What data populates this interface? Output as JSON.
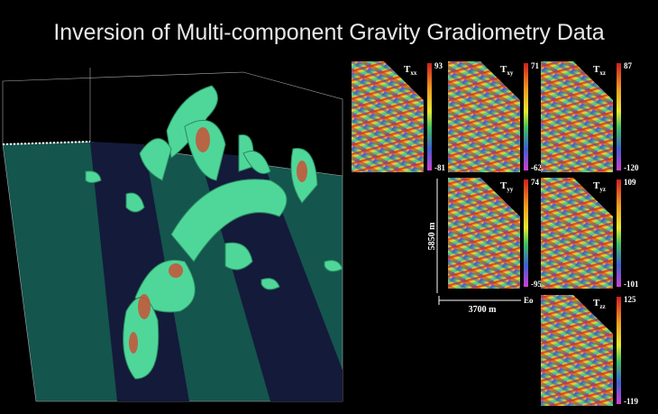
{
  "header": {
    "title": "Inversion of Multi-component Gravity Gradiometry Data"
  },
  "panels": [
    {
      "label": {
        "base": "T",
        "sub": "xx"
      },
      "max": 93,
      "min": -81
    },
    {
      "label": {
        "base": "T",
        "sub": "xy"
      },
      "max": 71,
      "min": -62
    },
    {
      "label": {
        "base": "T",
        "sub": "xz"
      },
      "max": 87,
      "min": -120
    },
    {
      "label": {
        "base": "T",
        "sub": "yy"
      },
      "max": 74,
      "min": -95
    },
    {
      "label": {
        "base": "T",
        "sub": "yz"
      },
      "max": 109,
      "min": -101
    },
    {
      "label": {
        "base": "T",
        "sub": "zz"
      },
      "max": 125,
      "min": -119
    }
  ],
  "axes": {
    "vertical": "5850 m",
    "horizontal": "3700 m",
    "east": "Eo"
  }
}
